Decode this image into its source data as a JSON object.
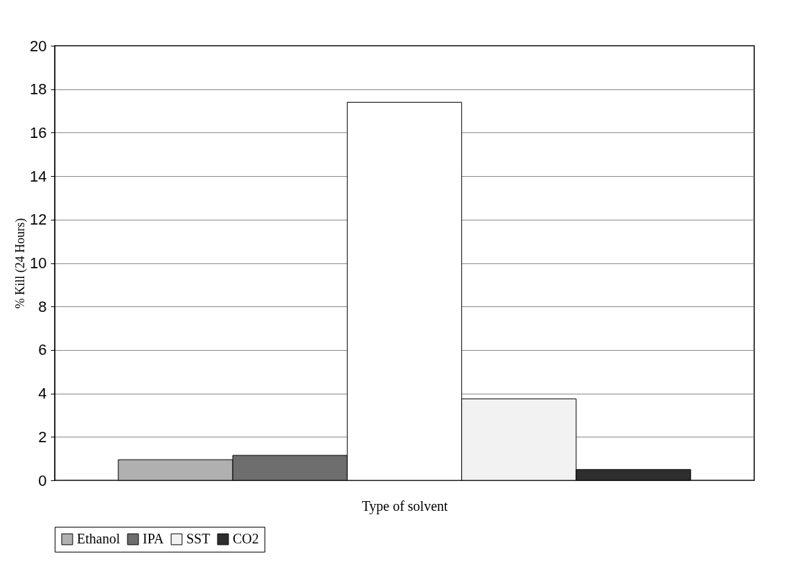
{
  "chart_data": {
    "type": "bar",
    "xlabel": "Type of solvent",
    "ylabel": "% Kill (24 Hours)",
    "categories": [
      null
    ],
    "series": [
      {
        "name": "Ethanol",
        "color": "#b0b0b0",
        "values": [
          0.95
        ]
      },
      {
        "name": "IPA",
        "color": "#6e6e6e",
        "values": [
          1.15
        ]
      },
      {
        "color": "#ffffff",
        "values": [
          17.4
        ]
      },
      {
        "name": "SST",
        "color": "#f2f2f2",
        "values": [
          3.75
        ]
      },
      {
        "name": "CO2",
        "color": "#2e2e2e",
        "values": [
          0.5
        ]
      }
    ],
    "ylim": [
      0,
      20
    ],
    "yticks": [
      0,
      2,
      4,
      6,
      8,
      10,
      12,
      14,
      16,
      18,
      20
    ],
    "grid": "y",
    "legend": "bottom"
  }
}
